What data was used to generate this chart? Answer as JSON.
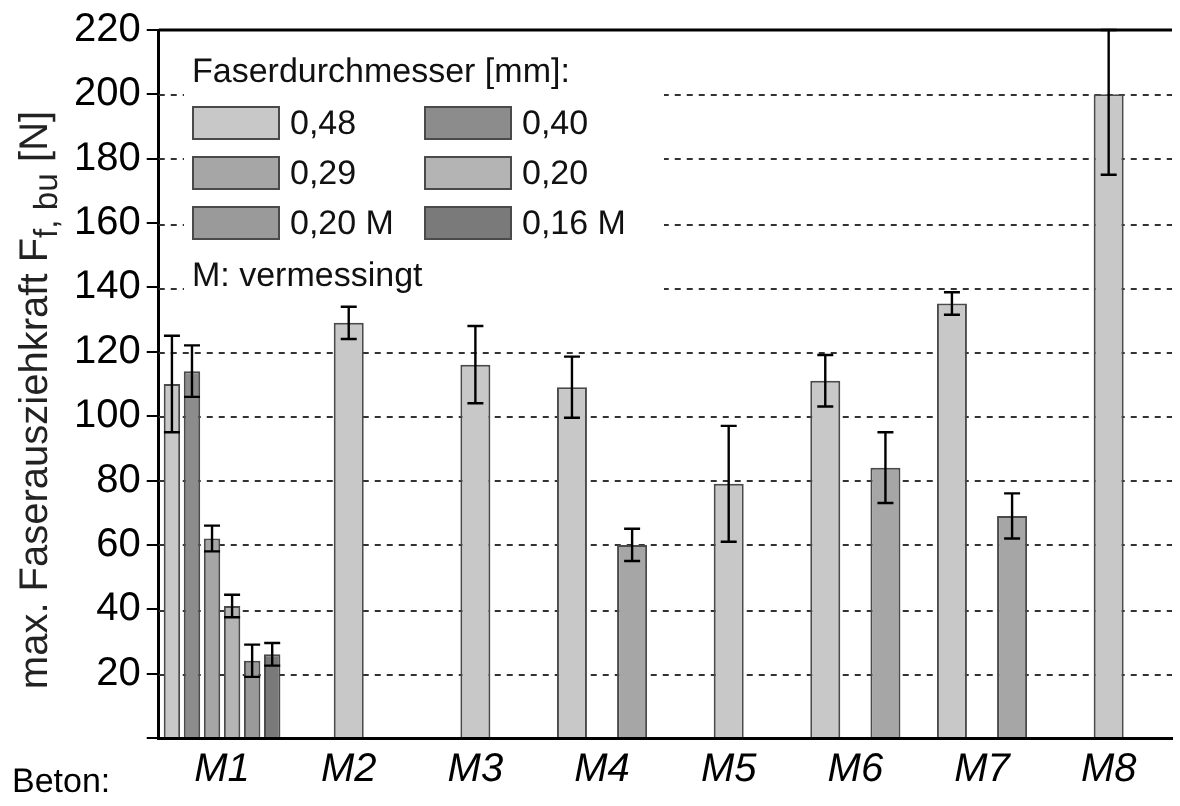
{
  "chart_data": {
    "type": "bar",
    "ylabel": "max. Faserausziehkraft  F$_{f, bu}$  [N]",
    "xlabel": "Beton:",
    "legend_title": "Faserdurchmesser [mm]:",
    "annotations": [
      "M: vermessingt"
    ],
    "categories": [
      "M1",
      "M2",
      "M3",
      "M4",
      "M5",
      "M6",
      "M7",
      "M8"
    ],
    "series": [
      {
        "name": "0,48",
        "color": "#c8c8c8",
        "values": [
          110,
          129,
          116,
          109,
          79,
          111,
          135,
          200
        ],
        "errors": [
          15,
          5,
          12,
          9.5,
          18,
          8,
          3.5,
          [
            175,
            220
          ]
        ]
      },
      {
        "name": "0,40",
        "color": "#8c8c8c",
        "values": [
          114,
          null,
          null,
          null,
          null,
          null,
          null,
          null
        ],
        "errors": [
          8,
          null,
          null,
          null,
          null,
          null,
          null,
          null
        ]
      },
      {
        "name": "0,29",
        "color": "#a6a6a6",
        "values": [
          62,
          null,
          null,
          60,
          null,
          84,
          69,
          null
        ],
        "errors": [
          4,
          null,
          null,
          5,
          null,
          11,
          7,
          null
        ]
      },
      {
        "name": "0,20",
        "color": "#b4b4b4",
        "values": [
          41,
          null,
          null,
          null,
          null,
          null,
          null,
          null
        ],
        "errors": [
          3.5,
          null,
          null,
          null,
          null,
          null,
          null,
          null
        ]
      },
      {
        "name": "0,20 M",
        "color": "#9a9a9a",
        "values": [
          24,
          null,
          null,
          null,
          null,
          null,
          null,
          null
        ],
        "errors": [
          5,
          null,
          null,
          null,
          null,
          null,
          null,
          null
        ]
      },
      {
        "name": "0,16 M",
        "color": "#7a7a7a",
        "values": [
          26,
          null,
          null,
          null,
          null,
          null,
          null,
          null
        ],
        "errors": [
          3.5,
          null,
          null,
          null,
          null,
          null,
          null,
          null
        ]
      }
    ],
    "ylim": [
      0,
      220
    ],
    "yticks": [
      {
        "value": 0,
        "label": null
      },
      20,
      40,
      60,
      80,
      100,
      120,
      140,
      160,
      180,
      200,
      220
    ],
    "grid": "y",
    "legend": "top left"
  }
}
